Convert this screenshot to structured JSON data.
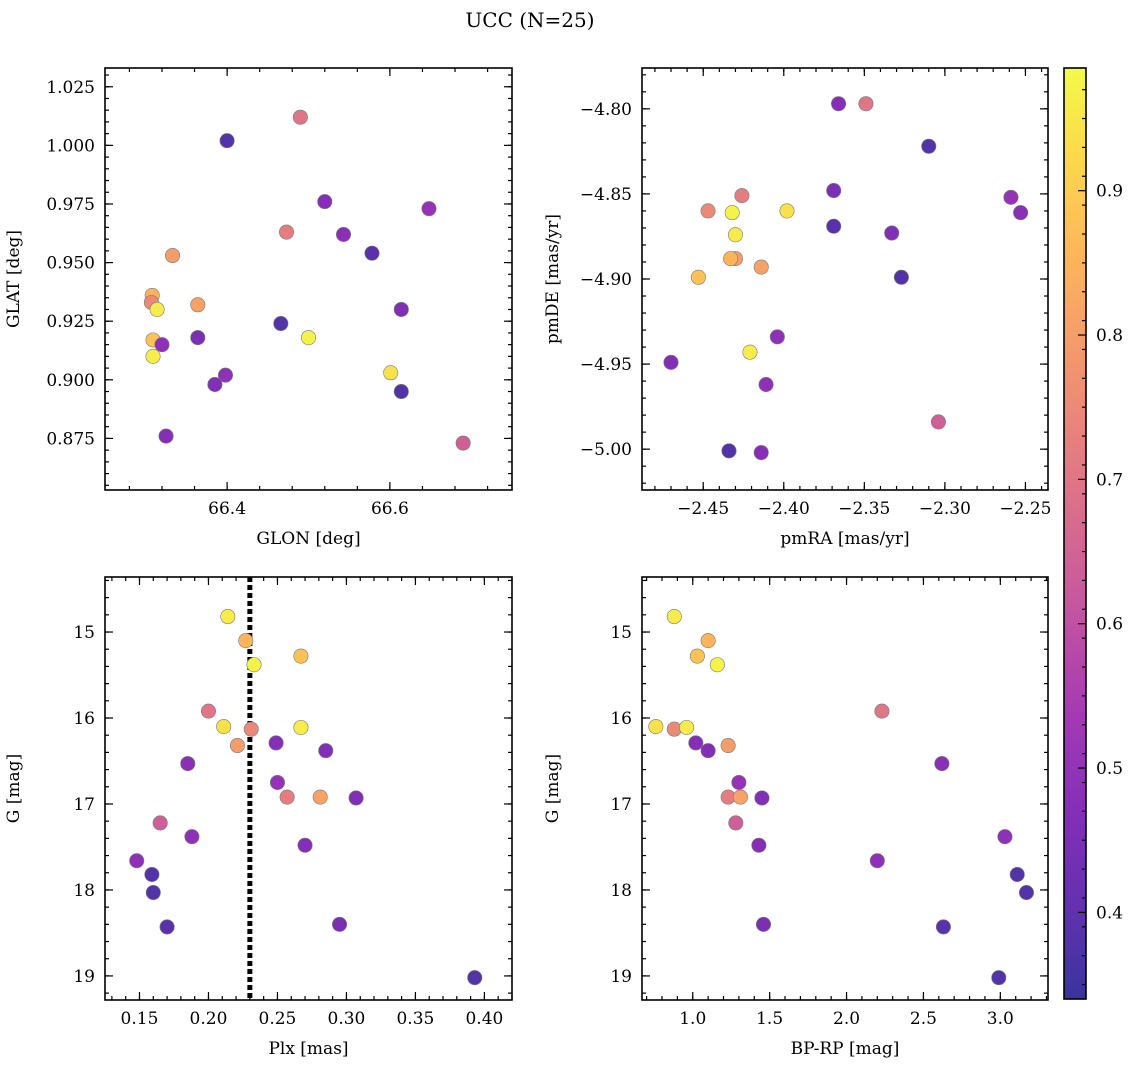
{
  "title": "UCC (N=25)",
  "colorbar": {
    "colormap": "plasma",
    "min": 0.34,
    "max": 0.985,
    "ticks": [
      0.4,
      0.5,
      0.6,
      0.7,
      0.8,
      0.9
    ]
  },
  "chart_data": [
    {
      "type": "scatter",
      "name": "glon-glat",
      "xlabel": "GLON [deg]",
      "ylabel": "GLAT [deg]",
      "xlim": [
        66.25,
        66.75
      ],
      "ylim": [
        0.853,
        1.033
      ],
      "xticks": [
        66.4,
        66.6
      ],
      "xtick_labels": [
        "66.4",
        "66.6"
      ],
      "yticks": [
        0.875,
        0.9,
        0.925,
        0.95,
        0.975,
        1.0,
        1.025
      ],
      "ytick_labels": [
        "0.875",
        "0.900",
        "0.925",
        "0.950",
        "0.975",
        "1.000",
        "1.025"
      ],
      "y_inverted": false
    },
    {
      "type": "scatter",
      "name": "pmra-pmde",
      "xlabel": "pmRA [mas/yr]",
      "ylabel": "pmDE [mas/yr]",
      "xlim": [
        -2.488,
        -2.236
      ],
      "ylim": [
        -5.024,
        -4.776
      ],
      "xticks": [
        -2.45,
        -2.4,
        -2.35,
        -2.3,
        -2.25
      ],
      "xtick_labels": [
        "−2.45",
        "−2.40",
        "−2.35",
        "−2.30",
        "−2.25"
      ],
      "yticks": [
        -5.0,
        -4.95,
        -4.9,
        -4.85,
        -4.8
      ],
      "ytick_labels": [
        "−5.00",
        "−4.95",
        "−4.90",
        "−4.85",
        "−4.80"
      ],
      "y_inverted": false
    },
    {
      "type": "scatter",
      "name": "plx-g",
      "xlabel": "Plx [mas]",
      "ylabel": "G [mag]",
      "xlim": [
        0.125,
        0.42
      ],
      "ylim": [
        14.36,
        19.28
      ],
      "xticks": [
        0.15,
        0.2,
        0.25,
        0.3,
        0.35,
        0.4
      ],
      "xtick_labels": [
        "0.15",
        "0.20",
        "0.25",
        "0.30",
        "0.35",
        "0.40"
      ],
      "yticks": [
        15,
        16,
        17,
        18,
        19
      ],
      "ytick_labels": [
        "15",
        "16",
        "17",
        "18",
        "19"
      ],
      "y_inverted": true,
      "vline": {
        "x": 0.23,
        "style": "dotted",
        "color": "#000000"
      }
    },
    {
      "type": "scatter",
      "name": "bprp-g",
      "xlabel": "BP-RP [mag]",
      "ylabel": "G [mag]",
      "xlim": [
        0.67,
        3.31
      ],
      "ylim": [
        14.36,
        19.28
      ],
      "xticks": [
        1.0,
        1.5,
        2.0,
        2.5,
        3.0
      ],
      "xtick_labels": [
        "1.0",
        "1.5",
        "2.0",
        "2.5",
        "3.0"
      ],
      "yticks": [
        15,
        16,
        17,
        18,
        19
      ],
      "ytick_labels": [
        "15",
        "16",
        "17",
        "18",
        "19"
      ],
      "y_inverted": true
    }
  ],
  "points": [
    {
      "glon": 66.4,
      "glat": 1.002,
      "pmra": -2.31,
      "pmde": -4.822,
      "plx": 0.16,
      "g": 18.03,
      "bprp": 3.17,
      "c": 0.38
    },
    {
      "glon": 66.49,
      "glat": 1.012,
      "pmra": -2.349,
      "pmde": -4.797,
      "plx": 0.2,
      "g": 15.92,
      "bprp": 2.23,
      "c": 0.7
    },
    {
      "glon": 66.52,
      "glat": 0.976,
      "pmra": -2.366,
      "pmde": -4.797,
      "plx": 0.27,
      "g": 17.48,
      "bprp": 1.43,
      "c": 0.47
    },
    {
      "glon": 66.648,
      "glat": 0.973,
      "pmra": -2.259,
      "pmde": -4.852,
      "plx": 0.25,
      "g": 16.75,
      "bprp": 1.3,
      "c": 0.5
    },
    {
      "glon": 66.473,
      "glat": 0.963,
      "pmra": -2.426,
      "pmde": -4.851,
      "plx": 0.257,
      "g": 16.92,
      "bprp": 1.23,
      "c": 0.72
    },
    {
      "glon": 66.543,
      "glat": 0.962,
      "pmra": -2.253,
      "pmde": -4.861,
      "plx": 0.185,
      "g": 16.53,
      "bprp": 2.62,
      "c": 0.48
    },
    {
      "glon": 66.578,
      "glat": 0.954,
      "pmra": -2.369,
      "pmde": -4.869,
      "plx": 0.17,
      "g": 18.43,
      "bprp": 2.63,
      "c": 0.39
    },
    {
      "glon": 66.333,
      "glat": 0.953,
      "pmra": -2.43,
      "pmde": -4.888,
      "plx": 0.221,
      "g": 16.32,
      "bprp": 1.23,
      "c": 0.8
    },
    {
      "glon": 66.308,
      "glat": 0.936,
      "pmra": -2.433,
      "pmde": -4.888,
      "plx": 0.227,
      "g": 15.1,
      "bprp": 1.1,
      "c": 0.85
    },
    {
      "glon": 66.307,
      "glat": 0.933,
      "pmra": -2.447,
      "pmde": -4.86,
      "plx": 0.231,
      "g": 16.13,
      "bprp": 0.88,
      "c": 0.75
    },
    {
      "glon": 66.314,
      "glat": 0.93,
      "pmra": -2.43,
      "pmde": -4.874,
      "plx": 0.214,
      "g": 14.82,
      "bprp": 0.88,
      "c": 0.96
    },
    {
      "glon": 66.364,
      "glat": 0.932,
      "pmra": -2.414,
      "pmde": -4.893,
      "plx": 0.281,
      "g": 16.92,
      "bprp": 1.31,
      "c": 0.81
    },
    {
      "glon": 66.364,
      "glat": 0.918,
      "pmra": -2.369,
      "pmde": -4.848,
      "plx": 0.295,
      "g": 18.4,
      "bprp": 1.46,
      "c": 0.45
    },
    {
      "glon": 66.466,
      "glat": 0.924,
      "pmra": -2.327,
      "pmde": -4.899,
      "plx": 0.159,
      "g": 17.82,
      "bprp": 3.11,
      "c": 0.38
    },
    {
      "glon": 66.309,
      "glat": 0.917,
      "pmra": -2.453,
      "pmde": -4.899,
      "plx": 0.267,
      "g": 15.28,
      "bprp": 1.03,
      "c": 0.88
    },
    {
      "glon": 66.5,
      "glat": 0.918,
      "pmra": -2.432,
      "pmde": -4.861,
      "plx": 0.233,
      "g": 15.38,
      "bprp": 1.16,
      "c": 0.97
    },
    {
      "glon": 66.32,
      "glat": 0.915,
      "pmra": -2.404,
      "pmde": -4.934,
      "plx": 0.188,
      "g": 17.38,
      "bprp": 3.03,
      "c": 0.49
    },
    {
      "glon": 66.614,
      "glat": 0.93,
      "pmra": -2.333,
      "pmde": -4.873,
      "plx": 0.285,
      "g": 16.38,
      "bprp": 1.1,
      "c": 0.46
    },
    {
      "glon": 66.309,
      "glat": 0.91,
      "pmra": -2.421,
      "pmde": -4.943,
      "plx": 0.267,
      "g": 16.11,
      "bprp": 0.96,
      "c": 0.96
    },
    {
      "glon": 66.601,
      "glat": 0.903,
      "pmra": -2.398,
      "pmde": -4.86,
      "plx": 0.211,
      "g": 16.1,
      "bprp": 0.76,
      "c": 0.94
    },
    {
      "glon": 66.398,
      "glat": 0.902,
      "pmra": -2.411,
      "pmde": -4.962,
      "plx": 0.148,
      "g": 17.66,
      "bprp": 2.2,
      "c": 0.49
    },
    {
      "glon": 66.385,
      "glat": 0.898,
      "pmra": -2.47,
      "pmde": -4.949,
      "plx": 0.307,
      "g": 16.93,
      "bprp": 1.45,
      "c": 0.46
    },
    {
      "glon": 66.614,
      "glat": 0.895,
      "pmra": -2.434,
      "pmde": -5.001,
      "plx": 0.393,
      "g": 19.02,
      "bprp": 2.99,
      "c": 0.38
    },
    {
      "glon": 66.325,
      "glat": 0.876,
      "pmra": -2.414,
      "pmde": -5.002,
      "plx": 0.249,
      "g": 16.29,
      "bprp": 1.02,
      "c": 0.47
    },
    {
      "glon": 66.69,
      "glat": 0.873,
      "pmra": -2.304,
      "pmde": -4.984,
      "plx": 0.165,
      "g": 17.22,
      "bprp": 1.28,
      "c": 0.64
    }
  ]
}
